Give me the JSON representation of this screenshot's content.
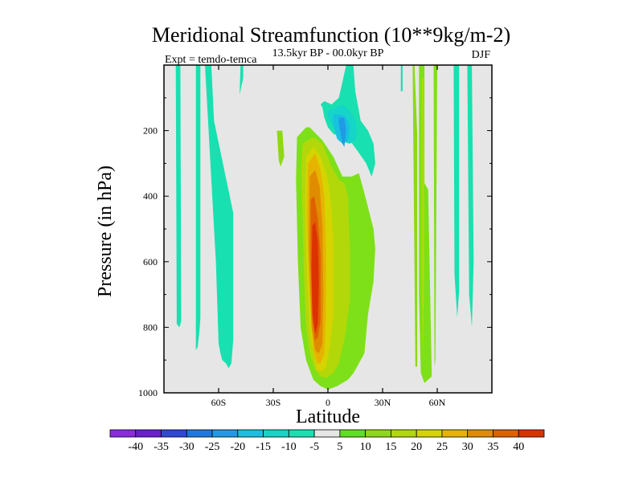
{
  "chart_data": {
    "type": "heatmap",
    "title": "Meridional Streamfunction (10**9kg/m-2)",
    "subtitle": "13.5kyr BP - 00.0kyr BP",
    "left_label": "Expt = temdo-temca",
    "right_label": "DJF",
    "xlabel": "Latitude",
    "ylabel": "Pressure (in hPa)",
    "xlim": [
      -90,
      90
    ],
    "ylim": [
      0,
      1000
    ],
    "y_inverted": true,
    "xticks": [
      {
        "value": -60,
        "label": "60S"
      },
      {
        "value": -30,
        "label": "30S"
      },
      {
        "value": 0,
        "label": "0"
      },
      {
        "value": 30,
        "label": "30N"
      },
      {
        "value": 60,
        "label": "60N"
      }
    ],
    "yticks": [
      {
        "value": 200,
        "label": "200"
      },
      {
        "value": 400,
        "label": "400"
      },
      {
        "value": 600,
        "label": "600"
      },
      {
        "value": 800,
        "label": "800"
      },
      {
        "value": 1000,
        "label": "1000"
      }
    ],
    "colorbar": {
      "labels": [
        "-40",
        "-35",
        "-30",
        "-25",
        "-20",
        "-15",
        "-10",
        "-5",
        "5",
        "10",
        "15",
        "20",
        "25",
        "30",
        "35",
        "40"
      ],
      "colors": [
        "#8a2be2",
        "#6a1fd0",
        "#3048d8",
        "#1e78e0",
        "#1f9be6",
        "#19c0e0",
        "#15d4c8",
        "#19e0b0",
        "#e6e6e6",
        "#5ee01e",
        "#8ed818",
        "#b2d80a",
        "#d6d400",
        "#e6b400",
        "#e08c00",
        "#e06000",
        "#dc3200"
      ]
    },
    "contours": [
      {
        "name": "sh-polar-band-1",
        "level": -5,
        "color": "#19e0b0",
        "lat": [
          -83.5,
          -81,
          -80.5,
          -81.5,
          -83
        ],
        "p": [
          [
            0,
            0,
            780,
            800,
            790
          ]
        ]
      },
      {
        "name": "sh-band-2",
        "level": -5,
        "color": "#19e0b0",
        "lat": [
          -72.5,
          -70,
          -70,
          -70.5,
          -71.5,
          -72.5
        ],
        "p": [
          [
            0,
            0,
            770,
            810,
            860,
            870
          ]
        ]
      },
      {
        "name": "sh-band-3",
        "level": -5,
        "color": "#19e0b0",
        "lat": [
          -67.5,
          -64,
          -62.5,
          -52,
          -52,
          -53,
          -54.5,
          -56,
          -58,
          -59,
          -60,
          -61.5
        ],
        "p": [
          [
            0,
            0,
            170,
            450,
            840,
            910,
            925,
            910,
            900,
            880,
            850,
            600
          ]
        ]
      },
      {
        "name": "sh-band-4",
        "level": -5,
        "color": "#19e0b0",
        "lat": [
          -48,
          -46.5,
          -46.5,
          -48.5
        ],
        "p": [
          [
            0,
            0,
            40,
            90
          ]
        ]
      }
    ]
  }
}
